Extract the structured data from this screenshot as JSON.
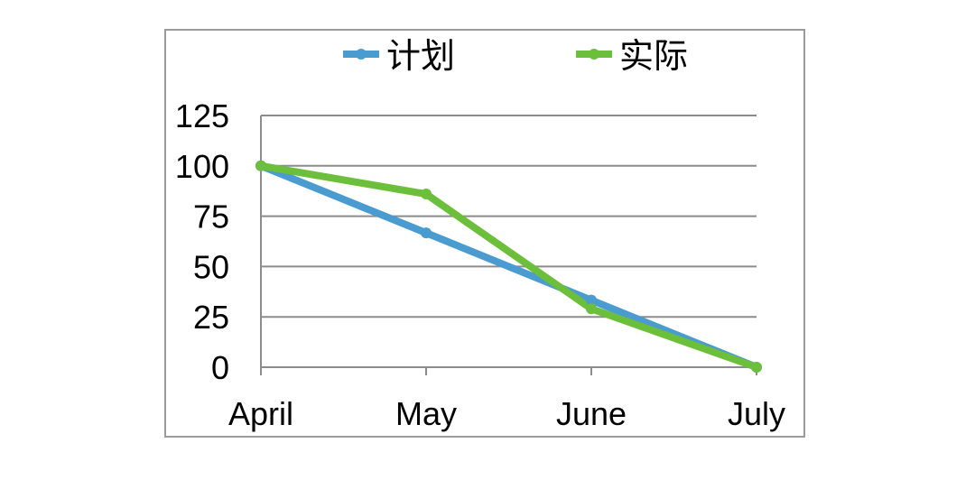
{
  "chart_data": {
    "type": "line",
    "categories": [
      "April",
      "May",
      "June",
      "July"
    ],
    "series": [
      {
        "name": "计划",
        "values": [
          100,
          66.7,
          33.3,
          0
        ],
        "color": "#4a9bd0"
      },
      {
        "name": "实际",
        "values": [
          100,
          86,
          29,
          0
        ],
        "color": "#6cbf3a"
      }
    ],
    "y_ticks": [
      0,
      25,
      50,
      75,
      100,
      125
    ],
    "ylim": [
      0,
      125
    ],
    "grid": true,
    "legend_position": "top"
  }
}
